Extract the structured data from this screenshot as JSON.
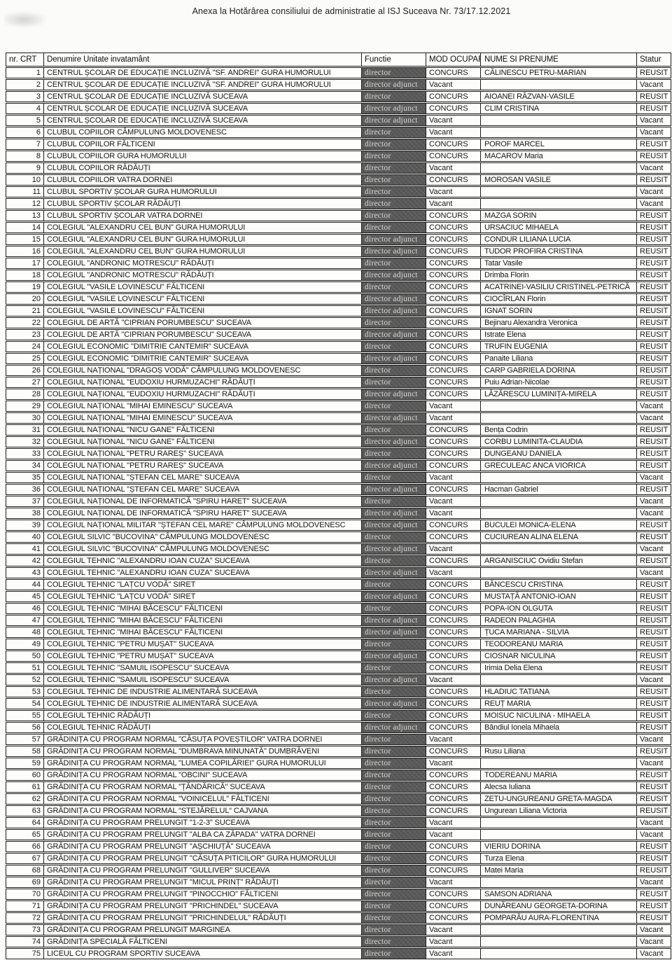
{
  "title": "Anexa la  Hotărârea consiliului de administratie al ISJ Suceava Nr. 73/17.12.2021",
  "colors": {
    "functie_cell_bg": "#59595a",
    "functie_cell_text": "#d9d7d2",
    "table_border": "#1c1c1c",
    "paper_bg": "#fbfbf9"
  },
  "table": {
    "headers": [
      "nr. CRT",
      "Denumire Unitate invatamânt",
      "Functie",
      "MOD OCUPAR",
      "NUME SI PRENUME",
      "Statur"
    ],
    "rows": [
      [
        1,
        "CENTRUL ȘCOLAR DE EDUCAȚIE INCLUZIVĂ \"SF. ANDREI\" GURA HUMORULUI",
        "director",
        "CONCURS",
        "CĂLINESCU PETRU-MARIAN",
        "REUSIT"
      ],
      [
        2,
        "CENTRUL ȘCOLAR DE EDUCAȚIE INCLUZIVĂ \"SF. ANDREI\" GURA HUMORULUI",
        "director adjunct",
        "Vacant",
        "",
        "Vacant"
      ],
      [
        3,
        "CENTRUL ȘCOLAR DE EDUCAȚIE INCLUZIVĂ SUCEAVA",
        "director",
        "CONCURS",
        "AIOANEI RĂZVAN-VASILE",
        "REUSIT"
      ],
      [
        4,
        "CENTRUL ȘCOLAR DE EDUCAȚIE INCLUZIVĂ SUCEAVA",
        "director adjunct",
        "CONCURS",
        "CLIM CRISTINA",
        "REUSIT"
      ],
      [
        5,
        "CENTRUL ȘCOLAR DE EDUCAȚIE INCLUZIVĂ SUCEAVA",
        "director adjunct",
        "Vacant",
        "",
        "Vacant"
      ],
      [
        6,
        "CLUBUL COPIILOR CÂMPULUNG MOLDOVENESC",
        "director",
        "Vacant",
        "",
        "Vacant"
      ],
      [
        7,
        "CLUBUL COPIILOR FĂLTICENI",
        "director",
        "CONCURS",
        "POROF MARCEL",
        "REUSIT"
      ],
      [
        8,
        "CLUBUL COPIILOR GURA HUMORULUI",
        "director",
        "CONCURS",
        "MACAROV Maria",
        "REUSIT"
      ],
      [
        9,
        "CLUBUL COPIILOR RĂDĂUȚI",
        "director",
        "Vacant",
        "",
        "Vacant"
      ],
      [
        10,
        "CLUBUL COPIILOR VATRA DORNEI",
        "director",
        "CONCURS",
        "MOROSAN VASILE",
        "REUSIT"
      ],
      [
        11,
        "CLUBUL SPORTIV ȘCOLAR GURA HUMORULUI",
        "director",
        "Vacant",
        "",
        "Vacant"
      ],
      [
        12,
        "CLUBUL SPORTIV ȘCOLAR RĂDĂUȚI",
        "director",
        "Vacant",
        "",
        "Vacant"
      ],
      [
        13,
        "CLUBUL SPORTIV ȘCOLAR VATRA DORNEI",
        "director",
        "CONCURS",
        "MAZGA SORIN",
        "REUSIT"
      ],
      [
        14,
        "COLEGIUL \"ALEXANDRU CEL BUN\" GURA HUMORULUI",
        "director",
        "CONCURS",
        "URSACIUC MIHAELA",
        "REUSIT"
      ],
      [
        15,
        "COLEGIUL \"ALEXANDRU CEL BUN\" GURA HUMORULUI",
        "director adjunct",
        "CONCURS",
        "CONDUR LILIANA LUCIA",
        "REUSIT"
      ],
      [
        16,
        "COLEGIUL \"ALEXANDRU CEL BUN\" GURA HUMORULUI",
        "director adjunct",
        "CONCURS",
        "TUDOR PROFIRA CRISTINA",
        "REUSIT"
      ],
      [
        17,
        "COLEGIUL \"ANDRONIC MOTRESCU\" RĂDĂUȚI",
        "director",
        "CONCURS",
        "Tatar Vasile",
        "REUSIT"
      ],
      [
        18,
        "COLEGIUL \"ANDRONIC MOTRESCU\" RĂDĂUȚI",
        "director adjunct",
        "CONCURS",
        "Drimba Florin",
        "REUSIT"
      ],
      [
        19,
        "COLEGIUL \"VASILE LOVINESCU\" FĂLTICENI",
        "director",
        "CONCURS",
        "ACATRINEI-VASILIU CRISTINEL-PETRICĂ",
        "REUSIT"
      ],
      [
        20,
        "COLEGIUL \"VASILE LOVINESCU\" FĂLTICENI",
        "director adjunct",
        "CONCURS",
        "CIOCÎRLAN Florin",
        "REUSIT"
      ],
      [
        21,
        "COLEGIUL \"VASILE LOVINESCU\" FĂLTICENI",
        "director adjunct",
        "CONCURS",
        "IGNAT SORIN",
        "REUSIT"
      ],
      [
        22,
        "COLEGIUL DE ARTĂ \"CIPRIAN PORUMBESCU\" SUCEAVA",
        "director",
        "CONCURS",
        "Bejinaru Alexandra Veronica",
        "REUSIT"
      ],
      [
        23,
        "COLEGIUL DE ARTĂ \"CIPRIAN PORUMBESCU\" SUCEAVA",
        "director adjunct",
        "CONCURS",
        "Istrate Elena",
        "REUSIT"
      ],
      [
        24,
        "COLEGIUL ECONOMIC \"DIMITRIE CANTEMIR\" SUCEAVA",
        "director",
        "CONCURS",
        "TRUFIN EUGENIA",
        "REUSIT"
      ],
      [
        25,
        "COLEGIUL ECONOMIC \"DIMITRIE CANTEMIR\" SUCEAVA",
        "director adjunct",
        "CONCURS",
        "Panaite Liliana",
        "REUSIT"
      ],
      [
        26,
        "COLEGIUL NAȚIONAL \"DRAGOȘ VODĂ\" CÂMPULUNG MOLDOVENESC",
        "director",
        "CONCURS",
        "CARP GABRIELA DORINA",
        "REUSIT"
      ],
      [
        27,
        "COLEGIUL NAȚIONAL \"EUDOXIU HURMUZACHI\" RĂDĂUȚI",
        "director",
        "CONCURS",
        "Puiu Adrian-Nicolae",
        "REUSIT"
      ],
      [
        28,
        "COLEGIUL NAȚIONAL \"EUDOXIU HURMUZACHI\" RĂDĂUȚI",
        "director adjunct",
        "CONCURS",
        "LĂZĂRESCU LUMINIȚA-MIRELA",
        "REUSIT"
      ],
      [
        29,
        "COLEGIUL NAȚIONAL \"MIHAI EMINESCU\" SUCEAVA",
        "director",
        "Vacant",
        "",
        "Vacant"
      ],
      [
        30,
        "COLEGIUL NAȚIONAL \"MIHAI EMINESCU\" SUCEAVA",
        "director adjunct",
        "Vacant",
        "",
        "Vacant"
      ],
      [
        31,
        "COLEGIUL NAȚIONAL \"NICU GANE\" FĂLTICENI",
        "director",
        "CONCURS",
        "Bența Codrin",
        "REUSIT"
      ],
      [
        32,
        "COLEGIUL NAȚIONAL \"NICU GANE\" FĂLTICENI",
        "director adjunct",
        "CONCURS",
        "CORBU LUMINITA-CLAUDIA",
        "REUSIT"
      ],
      [
        33,
        "COLEGIUL NAȚIONAL \"PETRU RAREȘ\" SUCEAVA",
        "director",
        "CONCURS",
        "DUNGEANU DANIELA",
        "REUSIT"
      ],
      [
        34,
        "COLEGIUL NAȚIONAL \"PETRU RAREȘ\" SUCEAVA",
        "director adjunct",
        "CONCURS",
        "GRECULEAC ANCA VIORICA",
        "REUSIT"
      ],
      [
        35,
        "COLEGIUL NAȚIONAL \"ȘTEFAN CEL MARE\" SUCEAVA",
        "director",
        "Vacant",
        "",
        "Vacant"
      ],
      [
        36,
        "COLEGIUL NAȚIONAL \"ȘTEFAN CEL MARE\" SUCEAVA",
        "director adjunct",
        "CONCURS",
        "Hacman Gabriel",
        "REUSIT"
      ],
      [
        37,
        "COLEGIUL NAȚIONAL DE INFORMATICĂ \"SPIRU HARET\" SUCEAVA",
        "director",
        "Vacant",
        "",
        "Vacant"
      ],
      [
        38,
        "COLEGIUL NAȚIONAL DE INFORMATICĂ \"SPIRU HARET\" SUCEAVA",
        "director adjunct",
        "Vacant",
        "",
        "Vacant"
      ],
      [
        39,
        "COLEGIUL NAȚIONAL MILITAR \"ȘTEFAN CEL MARE\" CÂMPULUNG MOLDOVENESC",
        "director adjunct",
        "CONCURS",
        "BUCULEI MONICA-ELENA",
        "REUSIT"
      ],
      [
        40,
        "COLEGIUL SILVIC \"BUCOVINA\" CÂMPULUNG MOLDOVENESC",
        "director",
        "CONCURS",
        "CUCIUREAN ALINA ELENA",
        "REUSIT"
      ],
      [
        41,
        "COLEGIUL SILVIC \"BUCOVINA\" CÂMPULUNG MOLDOVENESC",
        "director adjunct",
        "Vacant",
        "",
        "Vacant"
      ],
      [
        42,
        "COLEGIUL TEHNIC \"ALEXANDRU IOAN CUZA\" SUCEAVA",
        "director",
        "CONCURS",
        "ARGANISCIUC Ovidiu Stefan",
        "REUSIT"
      ],
      [
        43,
        "COLEGIUL TEHNIC \"ALEXANDRU IOAN CUZA\" SUCEAVA",
        "director adjunct",
        "Vacant",
        "",
        "Vacant"
      ],
      [
        44,
        "COLEGIUL TEHNIC \"LAȚCU VODĂ\" SIRET",
        "director",
        "CONCURS",
        "BĂNCESCU CRISTINA",
        "REUSIT"
      ],
      [
        45,
        "COLEGIUL TEHNIC \"LAȚCU VODĂ\" SIRET",
        "director adjunct",
        "CONCURS",
        "MUSTAȚĂ ANTONIO-IOAN",
        "REUSIT"
      ],
      [
        46,
        "COLEGIUL TEHNIC \"MIHAI BĂCESCU\" FĂLTICENI",
        "director",
        "CONCURS",
        "POPA-ION  OLGUTA",
        "REUSIT"
      ],
      [
        47,
        "COLEGIUL TEHNIC \"MIHAI BĂCESCU\" FĂLTICENI",
        "director adjunct",
        "CONCURS",
        "RADEON PALAGHIA",
        "REUSIT"
      ],
      [
        48,
        "COLEGIUL TEHNIC \"MIHAI BĂCESCU\" FĂLTICENI",
        "director adjunct",
        "CONCURS",
        "ȚUCA MARIANA - SILVIA",
        "REUSIT"
      ],
      [
        49,
        "COLEGIUL TEHNIC \"PETRU MUȘAT\" SUCEAVA",
        "director",
        "CONCURS",
        "TEODOREANU MARIA",
        "REUSIT"
      ],
      [
        50,
        "COLEGIUL TEHNIC \"PETRU MUȘAT\" SUCEAVA",
        "director adjunct",
        "CONCURS",
        "CIOSNAR NICULINA",
        "REUSIT"
      ],
      [
        51,
        "COLEGIUL TEHNIC \"SAMUIL ISOPESCU\" SUCEAVA",
        "director",
        "CONCURS",
        "Irimia Delia Elena",
        "REUSIT"
      ],
      [
        52,
        "COLEGIUL TEHNIC \"SAMUIL ISOPESCU\" SUCEAVA",
        "director adjunct",
        "Vacant",
        "",
        "Vacant"
      ],
      [
        53,
        "COLEGIUL TEHNIC DE INDUSTRIE ALIMENTARĂ SUCEAVA",
        "director",
        "CONCURS",
        "HLADIUC TATIANA",
        "REUSIT"
      ],
      [
        54,
        "COLEGIUL TEHNIC DE INDUSTRIE ALIMENTARĂ SUCEAVA",
        "director adjunct",
        "CONCURS",
        "REUȚ MARIA",
        "REUSIT"
      ],
      [
        55,
        "COLEGIUL TEHNIC RĂDĂUȚI",
        "director",
        "CONCURS",
        "MOISUC NICULINA - MIHAELA",
        "REUSIT"
      ],
      [
        56,
        "COLEGIUL TEHNIC RĂDĂUȚI",
        "director adjunct",
        "CONCURS",
        "Bândiul Ionela Mihaela",
        "REUSIT"
      ],
      [
        57,
        "GRĂDINIȚA CU PROGRAM NORMAL \"CĂSUȚA POVEȘTILOR\" VATRA DORNEI",
        "director",
        "Vacant",
        "",
        "Vacant"
      ],
      [
        58,
        "GRĂDINIȚA CU PROGRAM NORMAL \"DUMBRAVA MINUNATĂ\" DUMBRĂVENI",
        "director",
        "CONCURS",
        "Rusu  Liliana",
        "REUSIT"
      ],
      [
        59,
        "GRĂDINIȚA CU PROGRAM NORMAL \"LUMEA COPILĂRIEI\" GURA HUMORULUI",
        "director",
        "Vacant",
        "",
        "Vacant"
      ],
      [
        60,
        "GRĂDINIȚA CU PROGRAM NORMAL \"OBCINI\" SUCEAVA",
        "director",
        "CONCURS",
        "TODEREANU MARIA",
        "REUSIT"
      ],
      [
        61,
        "GRĂDINIȚA CU PROGRAM NORMAL \"ȚĂNDĂRICĂ\" SUCEAVA",
        "director",
        "CONCURS",
        "Alecsa Iuliana",
        "REUSIT"
      ],
      [
        62,
        "GRĂDINIȚA CU PROGRAM NORMAL \"VOINICELUL\" FĂLTICENI",
        "director",
        "CONCURS",
        "ZETU-UNGUREANU GRETA-MAGDA",
        "REUSIT"
      ],
      [
        63,
        "GRĂDINIȚA CU PROGRAM NORMAL “STEJĂRELUL“ CAJVANA",
        "director",
        "CONCURS",
        "Ungurean Liliana Victoria",
        "REUSIT"
      ],
      [
        64,
        "GRĂDINIȚA CU PROGRAM PRELUNGIT \"1-2-3\" SUCEAVA",
        "director",
        "Vacant",
        "",
        "Vacant"
      ],
      [
        65,
        "GRĂDINIȚA CU PROGRAM PRELUNGIT \"ALBA CA ZĂPADA\" VATRA DORNEI",
        "director",
        "Vacant",
        "",
        "Vacant"
      ],
      [
        66,
        "GRĂDINIȚA CU PROGRAM PRELUNGIT \"AȘCHIUȚĂ\" SUCEAVA",
        "director",
        "CONCURS",
        "VIERIU DORINA",
        "REUSIT"
      ],
      [
        67,
        "GRĂDINIȚA CU PROGRAM PRELUNGIT \"CĂSUȚA PITICILOR\" GURA HUMORULUI",
        "director",
        "CONCURS",
        "Turza Elena",
        "REUSIT"
      ],
      [
        68,
        "GRĂDINIȚA CU PROGRAM PRELUNGIT \"GULLIVER\" SUCEAVA",
        "director",
        "CONCURS",
        "Matei Maria",
        "REUSIT"
      ],
      [
        69,
        "GRĂDINIȚA CU PROGRAM PRELUNGIT \"MICUL PRINȚ\" RĂDĂUȚI",
        "director",
        "Vacant",
        "",
        "Vacant"
      ],
      [
        70,
        "GRĂDINIȚA CU PROGRAM PRELUNGIT \"PINOCCHIO\" FĂLTICENI",
        "director",
        "CONCURS",
        "SAMSON ADRIANA",
        "REUSIT"
      ],
      [
        71,
        "GRĂDINIȚA CU PROGRAM PRELUNGIT \"PRICHINDEL\" SUCEAVA",
        "director",
        "CONCURS",
        "DUNĂREANU GEORGETA-DORINA",
        "REUSIT"
      ],
      [
        72,
        "GRĂDINIȚA CU PROGRAM PRELUNGIT \"PRICHINDELUL\" RĂDĂUȚI",
        "director",
        "CONCURS",
        "POMPARĂU AURA-FLORENTINA",
        "REUSIT"
      ],
      [
        73,
        "GRĂDINIȚA CU PROGRAM PRELUNGIT MARGINEA",
        "director",
        "Vacant",
        "",
        "Vacant"
      ],
      [
        74,
        "GRĂDINIȚA SPECIALĂ FĂLTICENI",
        "director",
        "Vacant",
        "",
        "Vacant"
      ],
      [
        75,
        "LICEUL CU PROGRAM SPORTIV SUCEAVA",
        "director",
        "Vacant",
        "",
        "Vacant"
      ]
    ]
  }
}
